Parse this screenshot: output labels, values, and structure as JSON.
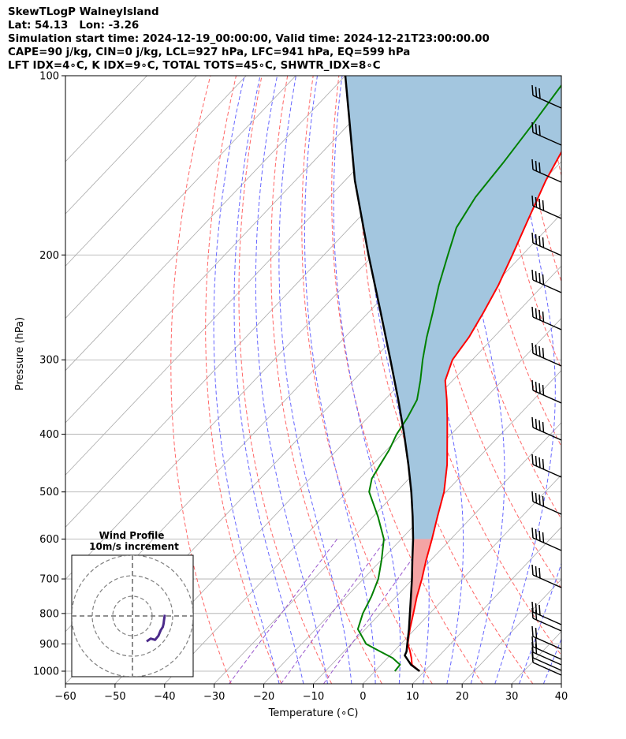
{
  "header": {
    "line1": "SkewTLogP WalneyIsland",
    "line2": "Lat: 54.13   Lon: -3.26",
    "line3": "Simulation start time: 2024-12-19_00:00:00, Valid time: 2024-12-21T23:00:00.00",
    "line4": "CAPE=90 j/kg, CIN=0 j/kg, LCL=927 hPa, LFC=941 hPa, EQ=599 hPa",
    "line5": "LFT IDX=4∘C, K IDX=9∘C, TOTAL TOTS=45∘C, SHWTR_IDX=8∘C"
  },
  "chart_data": {
    "type": "line",
    "subtype": "skew-t log-p",
    "xlabel": "Temperature (∘C)",
    "ylabel": "Pressure (hPa)",
    "xlim": [
      -60,
      40
    ],
    "ylim": [
      1050,
      100
    ],
    "y_scale": "log",
    "grid": true,
    "x_ticks": [
      "−60",
      "−50",
      "−40",
      "−30",
      "−20",
      "−10",
      "0",
      "10",
      "20",
      "30",
      "40"
    ],
    "y_ticks": [
      "100",
      "200",
      "300",
      "400",
      "500",
      "600",
      "700",
      "800",
      "900",
      "1000"
    ],
    "colors": {
      "temperature": "#ff0000",
      "dewpoint": "#008000",
      "parcel": "#000000",
      "cape_fill": "#a3c6df",
      "cin_fill": "#f4a4a4",
      "dry_adiabat": "#ff6666",
      "moist_adiabat": "#6666ff",
      "mixing_ratio": "#9955cc",
      "isotherm": "#aaaaaa",
      "hodograph": "#4b2a8a"
    },
    "series": [
      {
        "key": "temperature",
        "points": [
          [
            1000,
            9
          ],
          [
            975,
            6.2
          ],
          [
            950,
            4.8
          ],
          [
            925,
            3.2
          ],
          [
            900,
            1.4
          ],
          [
            850,
            -1.0
          ],
          [
            800,
            -3.3
          ],
          [
            750,
            -5.8
          ],
          [
            700,
            -8.2
          ],
          [
            650,
            -11.0
          ],
          [
            600,
            -13.8
          ],
          [
            550,
            -17.0
          ],
          [
            500,
            -20.4
          ],
          [
            450,
            -25.0
          ],
          [
            400,
            -30.8
          ],
          [
            375,
            -34.0
          ],
          [
            350,
            -37.5
          ],
          [
            325,
            -41.5
          ],
          [
            300,
            -44.0
          ],
          [
            275,
            -45.0
          ],
          [
            250,
            -46.8
          ],
          [
            225,
            -49.0
          ],
          [
            200,
            -52.0
          ],
          [
            175,
            -55.5
          ],
          [
            150,
            -59.5
          ],
          [
            130,
            -62.5
          ],
          [
            115,
            -64.0
          ],
          [
            100,
            -65.0
          ]
        ]
      },
      {
        "key": "dewpoint",
        "points": [
          [
            1000,
            4.0
          ],
          [
            975,
            3.8
          ],
          [
            950,
            1.0
          ],
          [
            925,
            -3.0
          ],
          [
            900,
            -7.0
          ],
          [
            850,
            -11.5
          ],
          [
            800,
            -13.5
          ],
          [
            750,
            -15.0
          ],
          [
            700,
            -17.0
          ],
          [
            650,
            -20.0
          ],
          [
            600,
            -23.5
          ],
          [
            550,
            -29.0
          ],
          [
            500,
            -35.5
          ],
          [
            475,
            -37.5
          ],
          [
            450,
            -38.5
          ],
          [
            425,
            -39.5
          ],
          [
            400,
            -41.0
          ],
          [
            375,
            -42.0
          ],
          [
            350,
            -43.5
          ],
          [
            325,
            -46.5
          ],
          [
            300,
            -50.0
          ],
          [
            275,
            -53.5
          ],
          [
            250,
            -57.0
          ],
          [
            225,
            -61.0
          ],
          [
            200,
            -65.0
          ],
          [
            180,
            -68.5
          ],
          [
            160,
            -70.5
          ],
          [
            140,
            -71.5
          ],
          [
            120,
            -73.0
          ],
          [
            100,
            -75.0
          ]
        ]
      },
      {
        "key": "parcel",
        "points": [
          [
            1000,
            9.0
          ],
          [
            975,
            6.0
          ],
          [
            941,
            3.0
          ],
          [
            927,
            2.6
          ],
          [
            900,
            1.3
          ],
          [
            850,
            -1.2
          ],
          [
            800,
            -4.0
          ],
          [
            750,
            -7.0
          ],
          [
            700,
            -10.2
          ],
          [
            650,
            -13.8
          ],
          [
            600,
            -17.6
          ],
          [
            550,
            -22.0
          ],
          [
            500,
            -27.0
          ],
          [
            450,
            -32.8
          ],
          [
            400,
            -39.5
          ],
          [
            350,
            -47.3
          ],
          [
            300,
            -56.5
          ],
          [
            250,
            -67.5
          ],
          [
            200,
            -81.0
          ],
          [
            150,
            -98.0
          ],
          [
            100,
            -120.0
          ]
        ]
      }
    ],
    "hodograph_uv": [
      [
        -3.5,
        -6.3
      ],
      [
        -4.5,
        -5.6
      ],
      [
        -5.6,
        -5.9
      ],
      [
        -6.0,
        -5.4
      ],
      [
        -6.4,
        -4.9
      ],
      [
        -6.7,
        -4.2
      ],
      [
        -7.0,
        -3.5
      ],
      [
        -7.5,
        -2.7
      ],
      [
        -7.7,
        -1.9
      ],
      [
        -7.8,
        -1.1
      ],
      [
        -7.9,
        -0.3
      ],
      [
        -8.0,
        0.3
      ]
    ],
    "wind_profile": {
      "title": "Wind Profile",
      "subtitle": "10m/s increment"
    }
  }
}
